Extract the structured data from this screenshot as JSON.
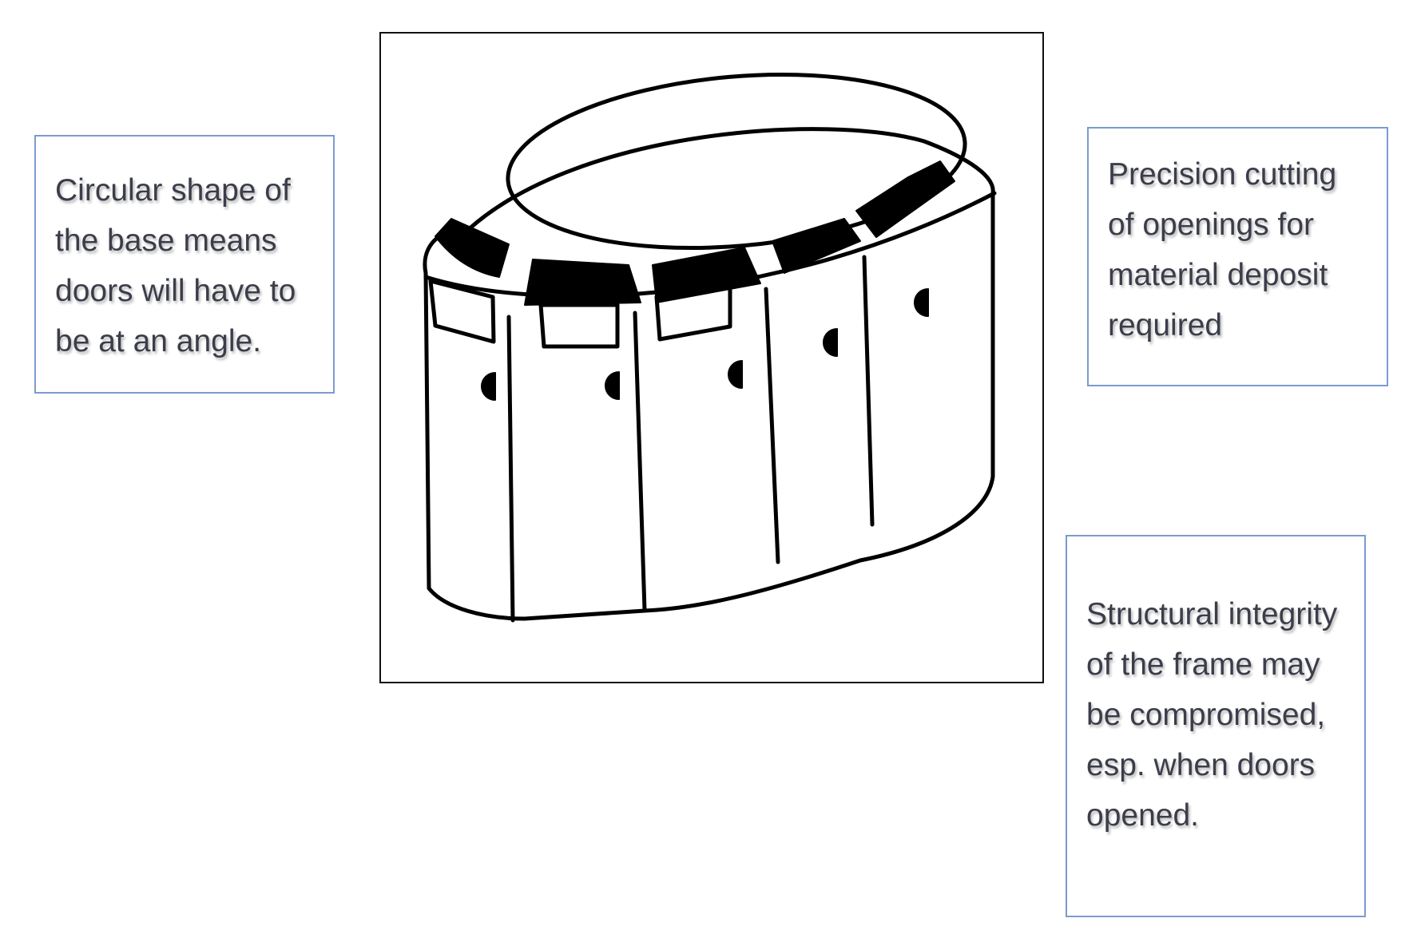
{
  "callouts": {
    "left": "Circular shape of the base means doors will have to be at an angle.",
    "top_right": "Precision cutting of openings for material deposit required",
    "bottom_right": "Structural integrity of the frame may be compromised, esp. when doors opened."
  },
  "illustration": {
    "subject": "oval-bin-unit-with-five-doors",
    "stroke_color": "#000000",
    "fill_color": "#ffffff"
  },
  "colors": {
    "callout_border": "#7b9bd0",
    "callout_text": "#3b3d4a",
    "frame_border": "#111111"
  }
}
